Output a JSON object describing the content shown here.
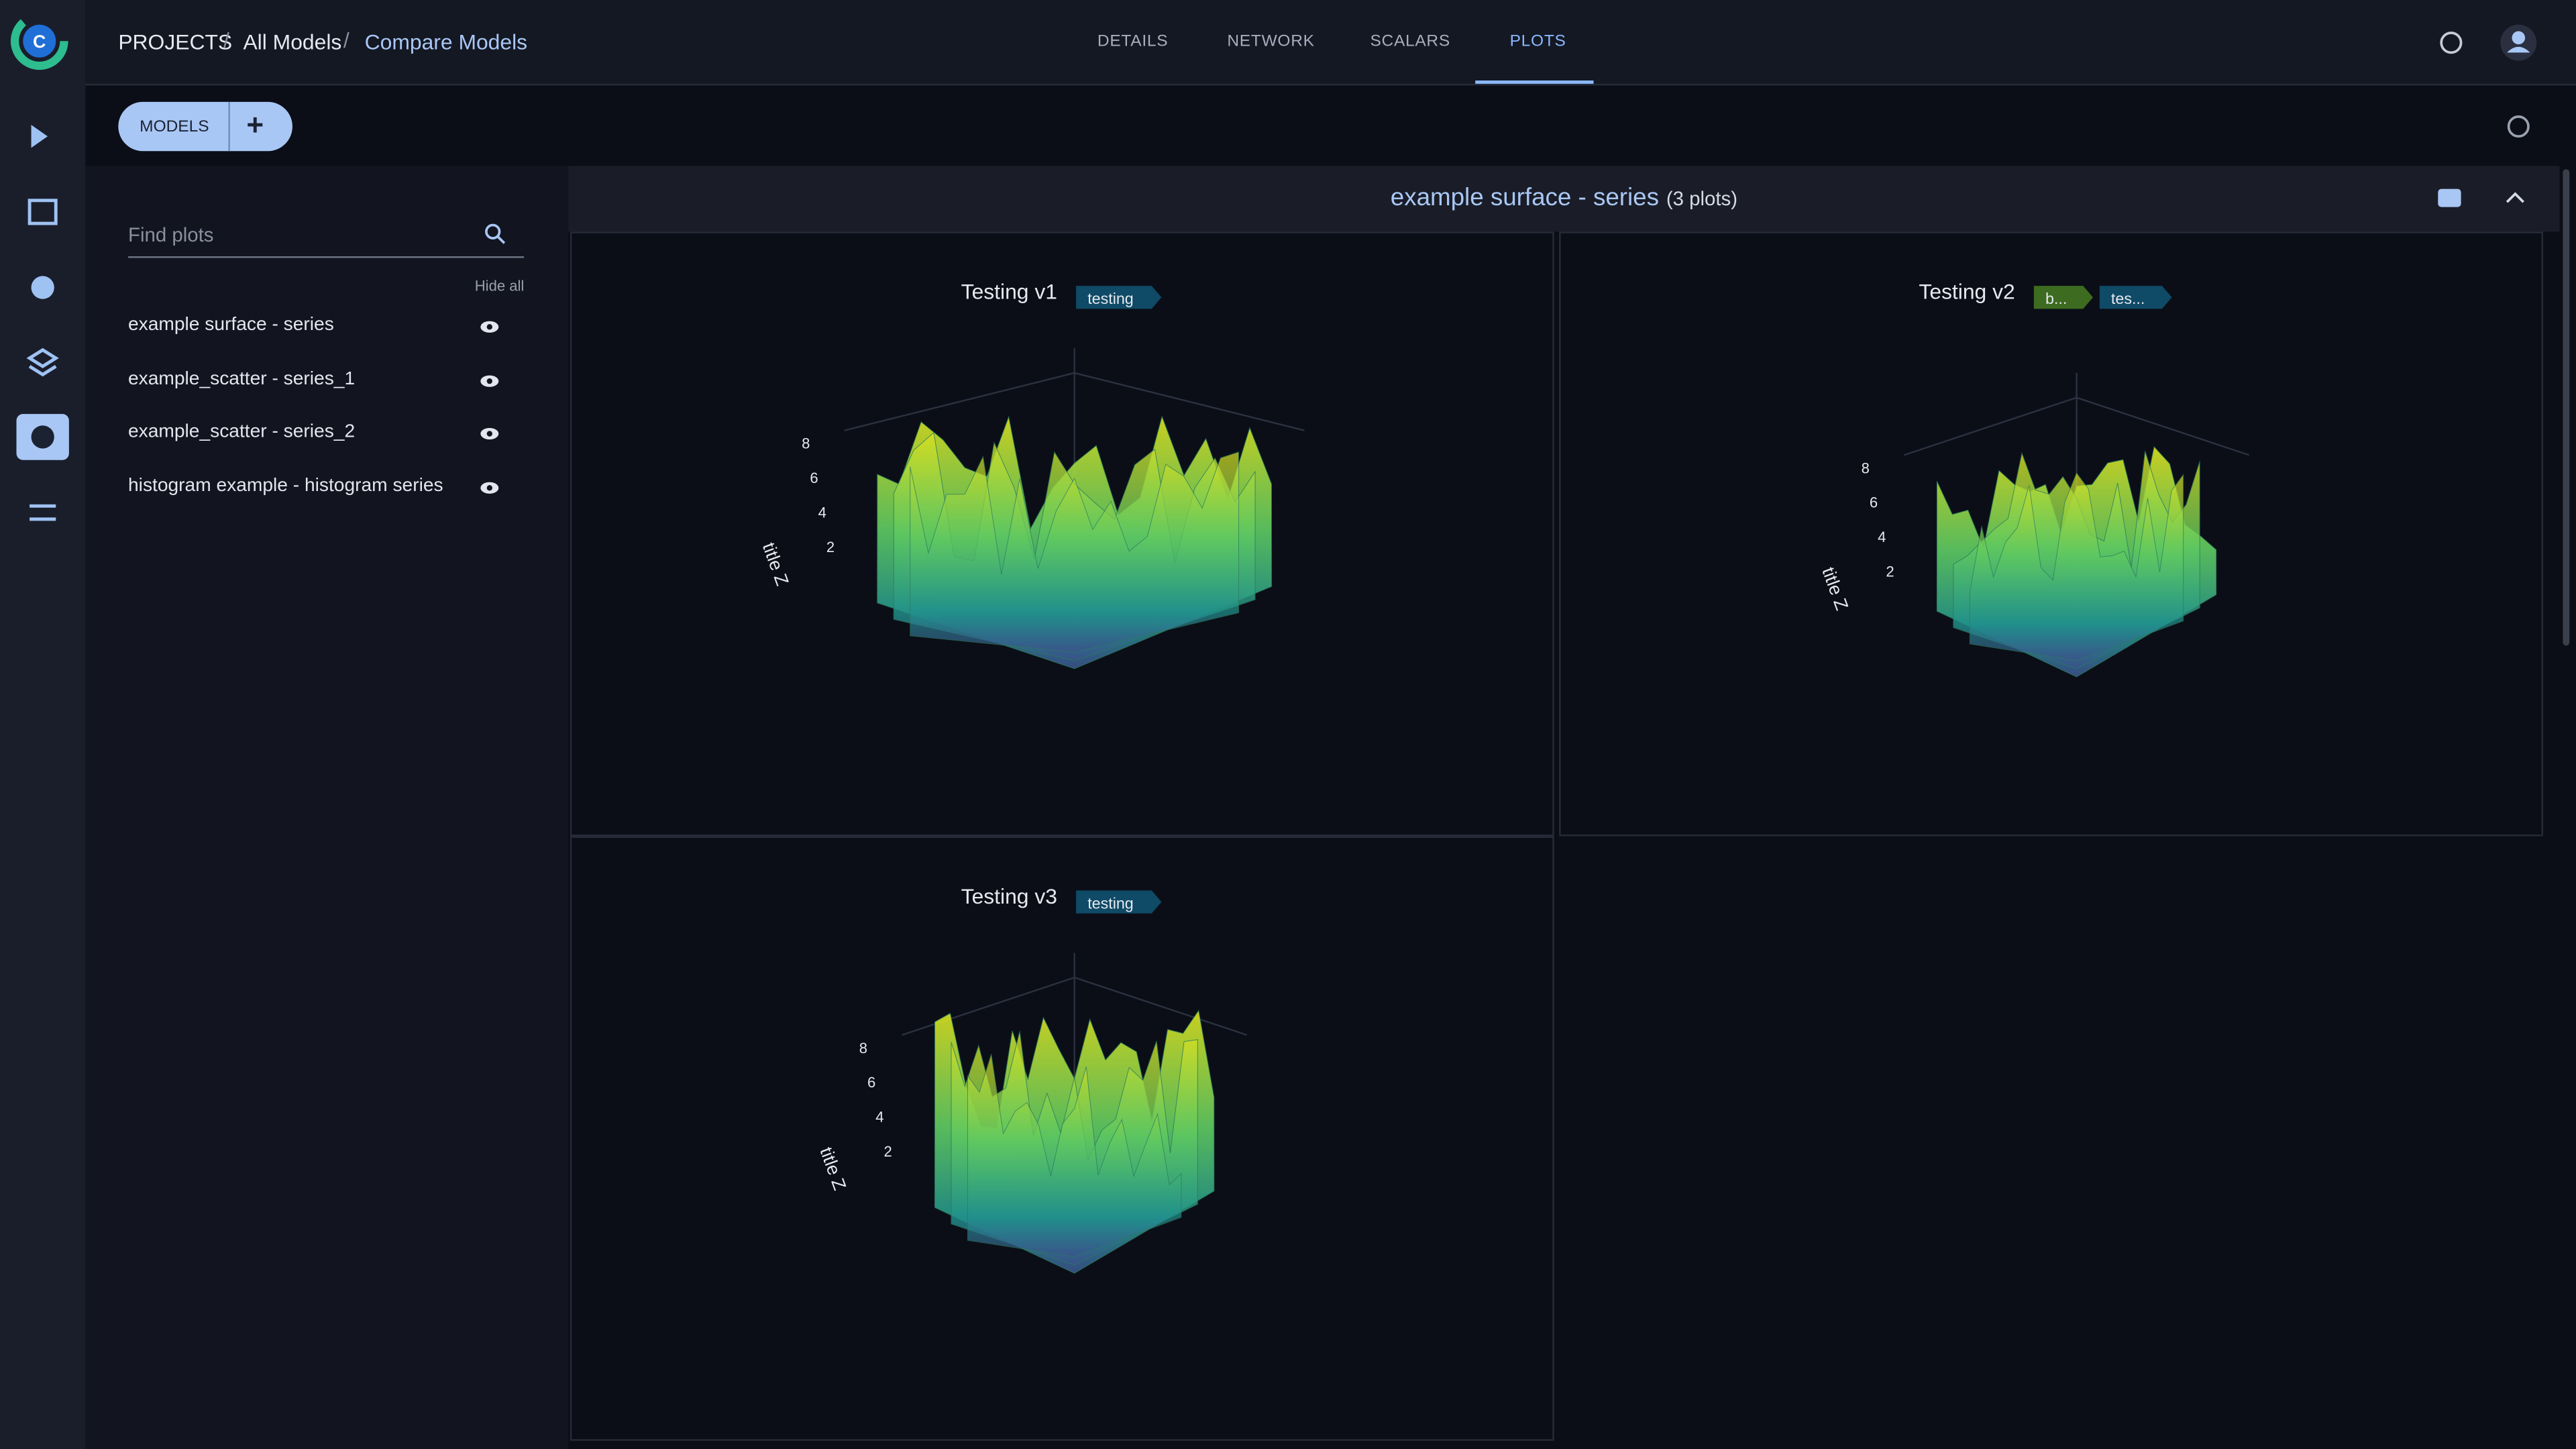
{
  "breadcrumb": [
    "PROJECTS",
    "All Models",
    "Compare Models"
  ],
  "tabs": [
    "DETAILS",
    "NETWORK",
    "SCALARS",
    "PLOTS"
  ],
  "models_button": "MODELS",
  "search_placeholder": "Find plots",
  "hide_all": "Hide all",
  "plot_list": [
    "example surface - series",
    "example_scatter - series_1",
    "example_scatter - series_2",
    "histogram example - histogram series"
  ],
  "section": {
    "title": "example surface - series",
    "count": "(3 plots)"
  },
  "plots": [
    {
      "title": "Testing v1",
      "tags": [
        "testing"
      ],
      "z_ticks": [
        "8",
        "6",
        "4",
        "2"
      ],
      "z_title": "title Z"
    },
    {
      "title": "Testing v2",
      "tags": [
        "b...",
        "tes..."
      ],
      "z_ticks": [
        "8",
        "6",
        "4",
        "2"
      ],
      "z_title": "title Z"
    },
    {
      "title": "Testing v3",
      "tags": [
        "testing"
      ],
      "z_ticks": [
        "8",
        "6",
        "4",
        "2"
      ],
      "z_title": "title Z"
    }
  ]
}
